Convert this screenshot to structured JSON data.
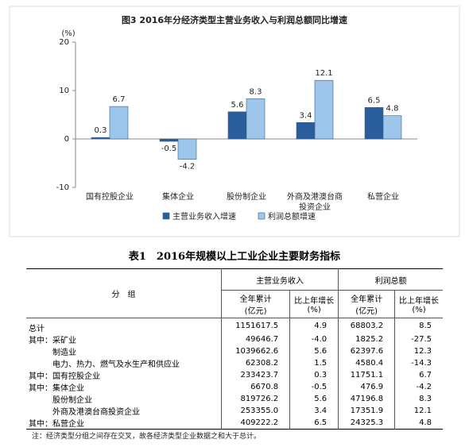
{
  "chart_data": {
    "type": "bar",
    "title": "图3 2016年分经济类型主营业务收入与利润总额同比增速",
    "y_label": "(%)",
    "categories": [
      "国有控股企业",
      "集体企业",
      "股份制企业",
      "外商及港澳台商投资企业",
      "私营企业"
    ],
    "series": [
      {
        "name": "主营业务收入增速",
        "color": "#2a5d9b",
        "values": [
          0.3,
          -0.5,
          5.6,
          3.4,
          6.5
        ]
      },
      {
        "name": "利润总额增速",
        "color": "#9dc6ea",
        "values": [
          6.7,
          -4.2,
          8.3,
          12.1,
          4.8
        ]
      }
    ],
    "ylim": [
      -10,
      20
    ],
    "yticks": [
      -10,
      0,
      10,
      20
    ],
    "grid": false,
    "legend": "bottom"
  },
  "table": {
    "title": "表1　2016年规模以上工业企业主要财务指标",
    "group_header": "分　组",
    "headers": [
      "主营业务收入",
      "利润总额"
    ],
    "subheaders": [
      "全年累计\n(亿元)",
      "比上年增长\n(%)",
      "全年累计\n(亿元)",
      "比上年增长\n(%)"
    ],
    "rows": [
      {
        "name": "总计",
        "cells": [
          "1151617.5",
          "4.9",
          "68803.2",
          "8.5"
        ]
      },
      {
        "prefix": "其中：",
        "name": "采矿业",
        "cells": [
          "49646.7",
          "-4.0",
          "1825.2",
          "-27.5"
        ]
      },
      {
        "name": "制造业",
        "cells": [
          "1039662.6",
          "5.6",
          "62397.6",
          "12.3"
        ]
      },
      {
        "name": "电力、热力、燃气及水生产和供应业",
        "cells": [
          "62308.2",
          "1.5",
          "4580.4",
          "-14.3"
        ]
      },
      {
        "prefix": "其中：",
        "name": "国有控股企业",
        "cells": [
          "233423.7",
          "0.3",
          "11751.1",
          "6.7"
        ]
      },
      {
        "prefix": "其中：",
        "name": "集体企业",
        "cells": [
          "6670.8",
          "-0.5",
          "476.9",
          "-4.2"
        ]
      },
      {
        "name": "股份制企业",
        "cells": [
          "819726.2",
          "5.6",
          "47196.8",
          "8.3"
        ]
      },
      {
        "name": "外商及港澳台商投资企业",
        "cells": [
          "253355.0",
          "3.4",
          "17351.9",
          "12.1"
        ]
      },
      {
        "prefix": "其中：",
        "name": "私营企业",
        "cells": [
          "409222.2",
          "6.5",
          "24325.3",
          "4.8"
        ]
      }
    ],
    "note": "注：经济类型分组之间存在交叉，故各经济类型企业数据之和大于总计。"
  }
}
